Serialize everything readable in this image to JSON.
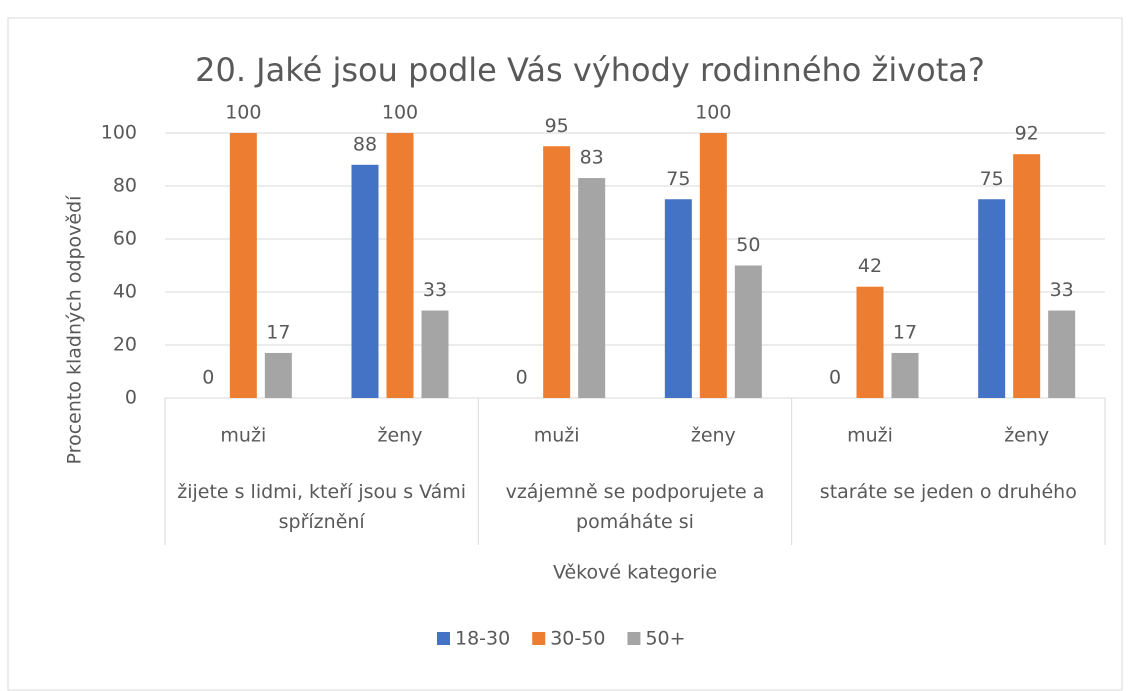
{
  "chart_data": {
    "type": "bar",
    "title": "20. Jaké jsou podle Vás výhody rodinného života?",
    "y_label": "Procento kladných odpovědí",
    "x_label": "Věkové kategorie",
    "categories": [
      "muži",
      "ženy",
      "muži",
      "ženy",
      "muži",
      "ženy"
    ],
    "category_groups": [
      "žijete s lidmi, kteří jsou s Vámi spříznění",
      "vzájemně se podporujete a pomáháte si",
      "staráte se jeden o druhého"
    ],
    "series": [
      {
        "name": "18-30",
        "color": "#4472c4",
        "values": [
          0,
          88,
          0,
          75,
          0,
          75
        ]
      },
      {
        "name": "30-50",
        "color": "#ed7d31",
        "values": [
          100,
          100,
          95,
          100,
          42,
          92
        ]
      },
      {
        "name": "50+",
        "color": "#a5a5a5",
        "values": [
          17,
          33,
          83,
          50,
          17,
          33
        ]
      }
    ],
    "ylim": [
      0,
      100
    ],
    "yticks": [
      0,
      20,
      40,
      60,
      80,
      100
    ],
    "grid": true,
    "legend": "bottom"
  }
}
